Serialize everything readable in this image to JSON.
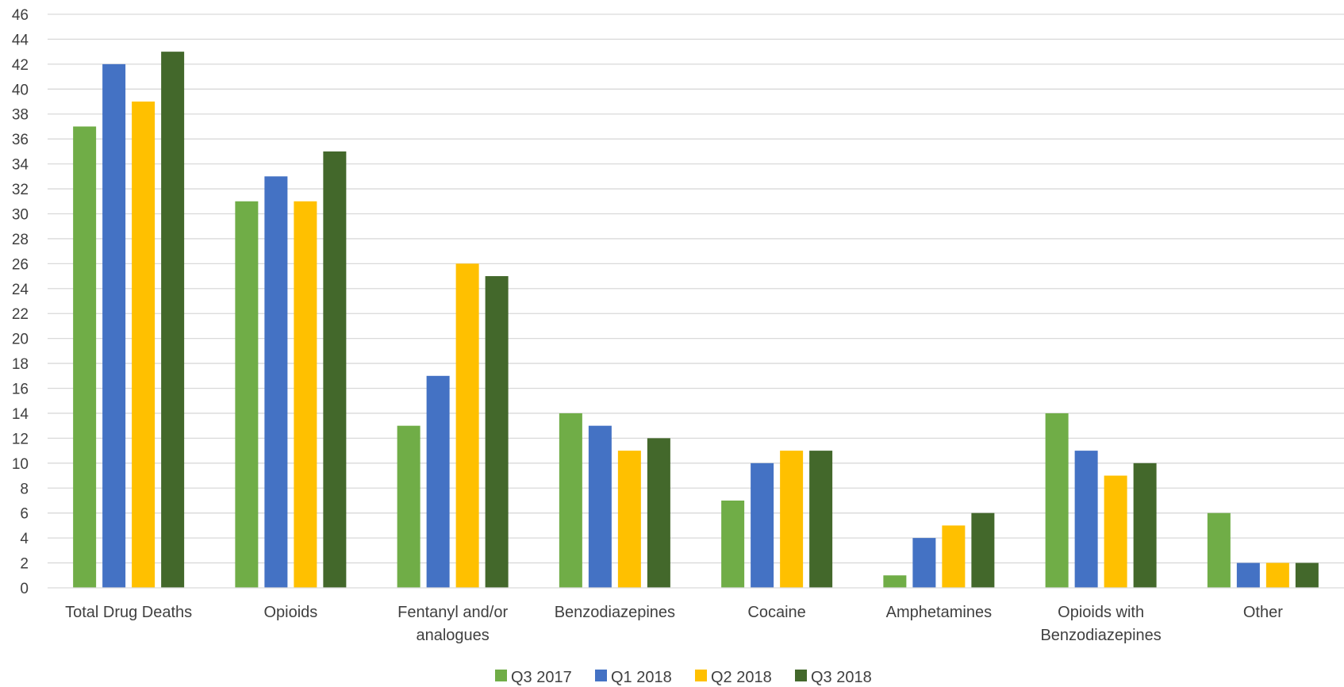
{
  "chart_data": {
    "type": "bar",
    "title": "",
    "xlabel": "",
    "ylabel": "",
    "ylim": [
      0,
      46
    ],
    "ytick_step": 2,
    "grid": true,
    "legend_position": "bottom",
    "categories": [
      [
        "Total Drug Deaths"
      ],
      [
        "Opioids"
      ],
      [
        "Fentanyl and/or",
        "analogues"
      ],
      [
        "Benzodiazepines"
      ],
      [
        "Cocaine"
      ],
      [
        "Amphetamines"
      ],
      [
        "Opioids with",
        "Benzodiazepines"
      ],
      [
        "Other"
      ]
    ],
    "series": [
      {
        "name": "Q3 2017",
        "color": "#70ad47",
        "values": [
          37,
          31,
          13,
          14,
          7,
          1,
          14,
          6
        ]
      },
      {
        "name": "Q1 2018",
        "color": "#4472c4",
        "values": [
          42,
          33,
          17,
          13,
          10,
          4,
          11,
          2
        ]
      },
      {
        "name": "Q2 2018",
        "color": "#ffc000",
        "values": [
          39,
          31,
          26,
          11,
          11,
          5,
          9,
          2
        ]
      },
      {
        "name": "Q3 2018",
        "color": "#43682b",
        "values": [
          43,
          35,
          25,
          12,
          11,
          6,
          10,
          2
        ]
      }
    ]
  }
}
